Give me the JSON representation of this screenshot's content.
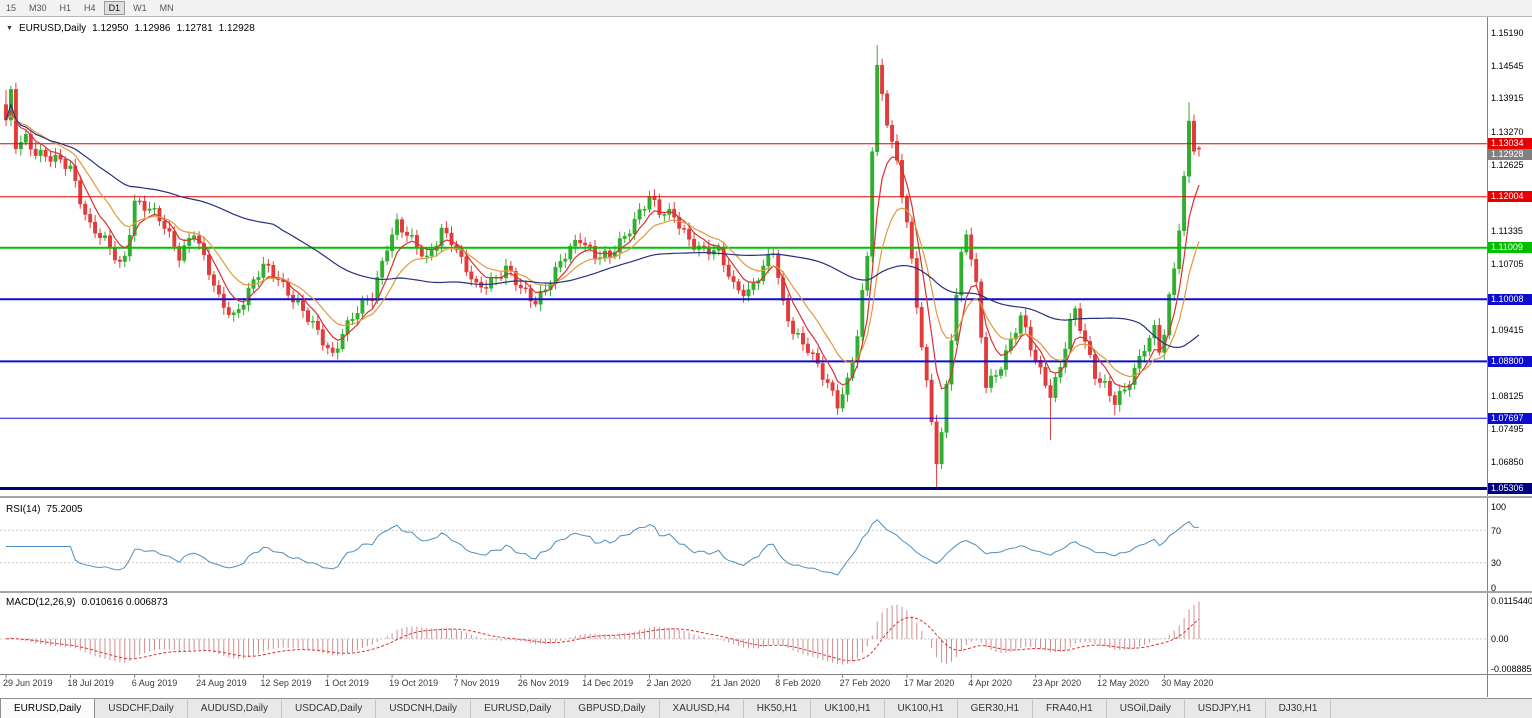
{
  "toolbar": {
    "timeframes": [
      "15",
      "M30",
      "H1",
      "H4",
      "D1",
      "W1",
      "MN"
    ],
    "active": "D1"
  },
  "window": {
    "title_symbol": "EURUSD,Daily",
    "ohlc": {
      "open": "1.12950",
      "high": "1.12986",
      "low": "1.12781",
      "close": "1.12928"
    }
  },
  "icons": {
    "dropdown_glyph": "▼"
  },
  "legends": {
    "rsi_label": "RSI(14)",
    "rsi_value": "75.2005",
    "macd_label": "MACD(12,26,9)",
    "macd_values": "0.010616 0.006873"
  },
  "tabs": [
    "EURUSD,Daily",
    "USDCHF,Daily",
    "AUDUSD,Daily",
    "USDCAD,Daily",
    "USDCNH,Daily",
    "EURUSD,Daily",
    "GBPUSD,Daily",
    "XAUUSD,H4",
    "HK50,H1",
    "UK100,H1",
    "UK100,H1",
    "GER30,H1",
    "FRA40,H1",
    "USOil,Daily",
    "USDJPY,H1",
    "DJ30,H1"
  ],
  "active_tab_index": 0,
  "style": {
    "up_color": "#2fae2f",
    "down_color": "#e23b3b",
    "separator_color": "#a6a6a6",
    "scale_line_color": "#808080",
    "current_badge_color": "#808080",
    "rsi_line_color": "#4e8fbf",
    "level_dotted_color": "#c8c8c8"
  },
  "chart_data": {
    "type": "candlestick",
    "symbol": "EURUSD",
    "timeframe": "Daily",
    "price_range": [
      1.063,
      1.154
    ],
    "candle_count": 242,
    "current_price": 1.12928,
    "y_axis_labels": [
      "1.15190",
      "1.14545",
      "1.13915",
      "1.13270",
      "1.12625",
      "1.11335",
      "1.10705",
      "1.09415",
      "1.08125",
      "1.07495",
      "1.06850"
    ],
    "x_axis_labels": [
      "29 Jun 2019",
      "18 Jul 2019",
      "6 Aug 2019",
      "24 Aug 2019",
      "12 Sep 2019",
      "1 Oct 2019",
      "19 Oct 2019",
      "7 Nov 2019",
      "26 Nov 2019",
      "14 Dec 2019",
      "2 Jan 2020",
      "21 Jan 2020",
      "8 Feb 2020",
      "27 Feb 2020",
      "17 Mar 2020",
      "4 Apr 2020",
      "23 Apr 2020",
      "12 May 2020",
      "30 May 2020"
    ],
    "horizontal_levels": [
      {
        "price": 1.13034,
        "label": "1.13034",
        "color": "#e60000",
        "width": 1
      },
      {
        "price": 1.12004,
        "label": "1.12004",
        "color": "#e60000",
        "width": 1
      },
      {
        "price": 1.11009,
        "label": "1.11009",
        "color": "#00c000",
        "width": 2
      },
      {
        "price": 1.10008,
        "label": "1.10008",
        "color": "#0d0dcf",
        "width": 2
      },
      {
        "price": 1.088,
        "label": "1.08800",
        "color": "#0d0dcf",
        "width": 2
      },
      {
        "price": 1.07697,
        "label": "1.07697",
        "color": "#0d0dcf",
        "width": 1
      },
      {
        "price": 1.05306,
        "label": "1.05306",
        "color": "#000080",
        "width": 3,
        "clamp_bottom": true
      }
    ],
    "close_path_anchors": [
      [
        0,
        1.134
      ],
      [
        1,
        1.1398
      ],
      [
        2,
        1.13
      ],
      [
        4,
        1.1318
      ],
      [
        6,
        1.129
      ],
      [
        9,
        1.1272
      ],
      [
        13,
        1.1258
      ],
      [
        15,
        1.12
      ],
      [
        17,
        1.1145
      ],
      [
        20,
        1.111
      ],
      [
        23,
        1.1068
      ],
      [
        24,
        1.1085
      ],
      [
        26,
        1.1195
      ],
      [
        29,
        1.1175
      ],
      [
        32,
        1.114
      ],
      [
        35,
        1.109
      ],
      [
        38,
        1.1135
      ],
      [
        40,
        1.1075
      ],
      [
        43,
        1.1
      ],
      [
        46,
        1.0972
      ],
      [
        49,
        1.1015
      ],
      [
        52,
        1.1062
      ],
      [
        55,
        1.1045
      ],
      [
        58,
        1.1005
      ],
      [
        61,
        1.096
      ],
      [
        64,
        1.092
      ],
      [
        66,
        1.0895
      ],
      [
        68,
        1.094
      ],
      [
        71,
        1.0975
      ],
      [
        74,
        1.1005
      ],
      [
        77,
        1.111
      ],
      [
        79,
        1.115
      ],
      [
        82,
        1.111
      ],
      [
        85,
        1.1078
      ],
      [
        88,
        1.114
      ],
      [
        90,
        1.1115
      ],
      [
        92,
        1.107
      ],
      [
        95,
        1.1025
      ],
      [
        98,
        1.104
      ],
      [
        101,
        1.1058
      ],
      [
        104,
        1.1018
      ],
      [
        107,
        1.1
      ],
      [
        110,
        1.104
      ],
      [
        113,
        1.1082
      ],
      [
        116,
        1.112
      ],
      [
        119,
        1.1092
      ],
      [
        122,
        1.1082
      ],
      [
        125,
        1.1118
      ],
      [
        128,
        1.1175
      ],
      [
        130,
        1.1205
      ],
      [
        132,
        1.1168
      ],
      [
        135,
        1.1158
      ],
      [
        138,
        1.112
      ],
      [
        141,
        1.1098
      ],
      [
        144,
        1.1088
      ],
      [
        147,
        1.1028
      ],
      [
        150,
        1.1018
      ],
      [
        153,
        1.1058
      ],
      [
        155,
        1.1092
      ],
      [
        157,
        1.099
      ],
      [
        159,
        1.0945
      ],
      [
        162,
        1.0905
      ],
      [
        165,
        1.0848
      ],
      [
        168,
        1.08
      ],
      [
        170,
        1.0845
      ],
      [
        172,
        1.0935
      ],
      [
        174,
        1.108
      ],
      [
        175,
        1.129
      ],
      [
        176,
        1.1445
      ],
      [
        177,
        1.1395
      ],
      [
        178,
        1.135
      ],
      [
        180,
        1.127
      ],
      [
        182,
        1.1155
      ],
      [
        184,
        1.0985
      ],
      [
        186,
        1.083
      ],
      [
        188,
        1.069
      ],
      [
        189,
        1.074
      ],
      [
        191,
        1.0935
      ],
      [
        193,
        1.1085
      ],
      [
        194,
        1.113
      ],
      [
        196,
        1.102
      ],
      [
        198,
        1.0835
      ],
      [
        200,
        1.0858
      ],
      [
        203,
        1.092
      ],
      [
        205,
        1.0962
      ],
      [
        207,
        1.0905
      ],
      [
        209,
        1.0862
      ],
      [
        211,
        1.0822
      ],
      [
        213,
        1.087
      ],
      [
        215,
        1.0952
      ],
      [
        216,
        1.0972
      ],
      [
        218,
        1.0915
      ],
      [
        220,
        1.0858
      ],
      [
        222,
        1.0838
      ],
      [
        224,
        1.0802
      ],
      [
        226,
        1.0818
      ],
      [
        228,
        1.0858
      ],
      [
        230,
        1.0912
      ],
      [
        232,
        1.0948
      ],
      [
        233,
        1.0908
      ],
      [
        234,
        1.0935
      ],
      [
        235,
        1.0998
      ],
      [
        236,
        1.1058
      ],
      [
        237,
        1.1135
      ],
      [
        238,
        1.1228
      ],
      [
        239,
        1.1345
      ],
      [
        240,
        1.13
      ],
      [
        241,
        1.12928
      ]
    ],
    "overrides": {
      "0": {
        "h": 1.1408
      },
      "176": {
        "h": 1.1495
      },
      "188": {
        "l": 1.0636
      },
      "211": {
        "l": 1.0727
      },
      "224": {
        "l": 1.0775
      },
      "239": {
        "h": 1.1384
      },
      "241": {
        "o": 1.1295,
        "h": 1.12986,
        "l": 1.12781,
        "c": 1.12928
      }
    },
    "moving_averages": [
      {
        "name": "fast",
        "period": 6,
        "method": "ema",
        "color": "#d93030"
      },
      {
        "name": "medium",
        "period": 13,
        "method": "ema",
        "color": "#e0993c"
      },
      {
        "name": "slow",
        "period": 55,
        "method": "sma",
        "color": "#28317e"
      }
    ],
    "rsi": {
      "period": 14,
      "current": 75.2005,
      "color": "#4e8fbf",
      "levels": [
        {
          "value": 100,
          "label": "100"
        },
        {
          "value": 70,
          "label": "70",
          "dotted": true
        },
        {
          "value": 30,
          "label": "30",
          "dotted": true
        },
        {
          "value": 0,
          "label": "0"
        }
      ]
    },
    "macd": {
      "fast": 12,
      "slow": 26,
      "signal": 9,
      "current_macd": 0.010616,
      "current_signal": 0.006873,
      "scale_max": 0.011544,
      "scale_min": -0.0088856,
      "hist_color": "#cf8f8f",
      "signal_color": "#e03030",
      "axis_labels": [
        {
          "value": 0.011544,
          "label": "0.0115440"
        },
        {
          "value": 0,
          "label": "0.00"
        },
        {
          "value": -0.0088856,
          "label": "-0.0088856"
        }
      ]
    }
  }
}
